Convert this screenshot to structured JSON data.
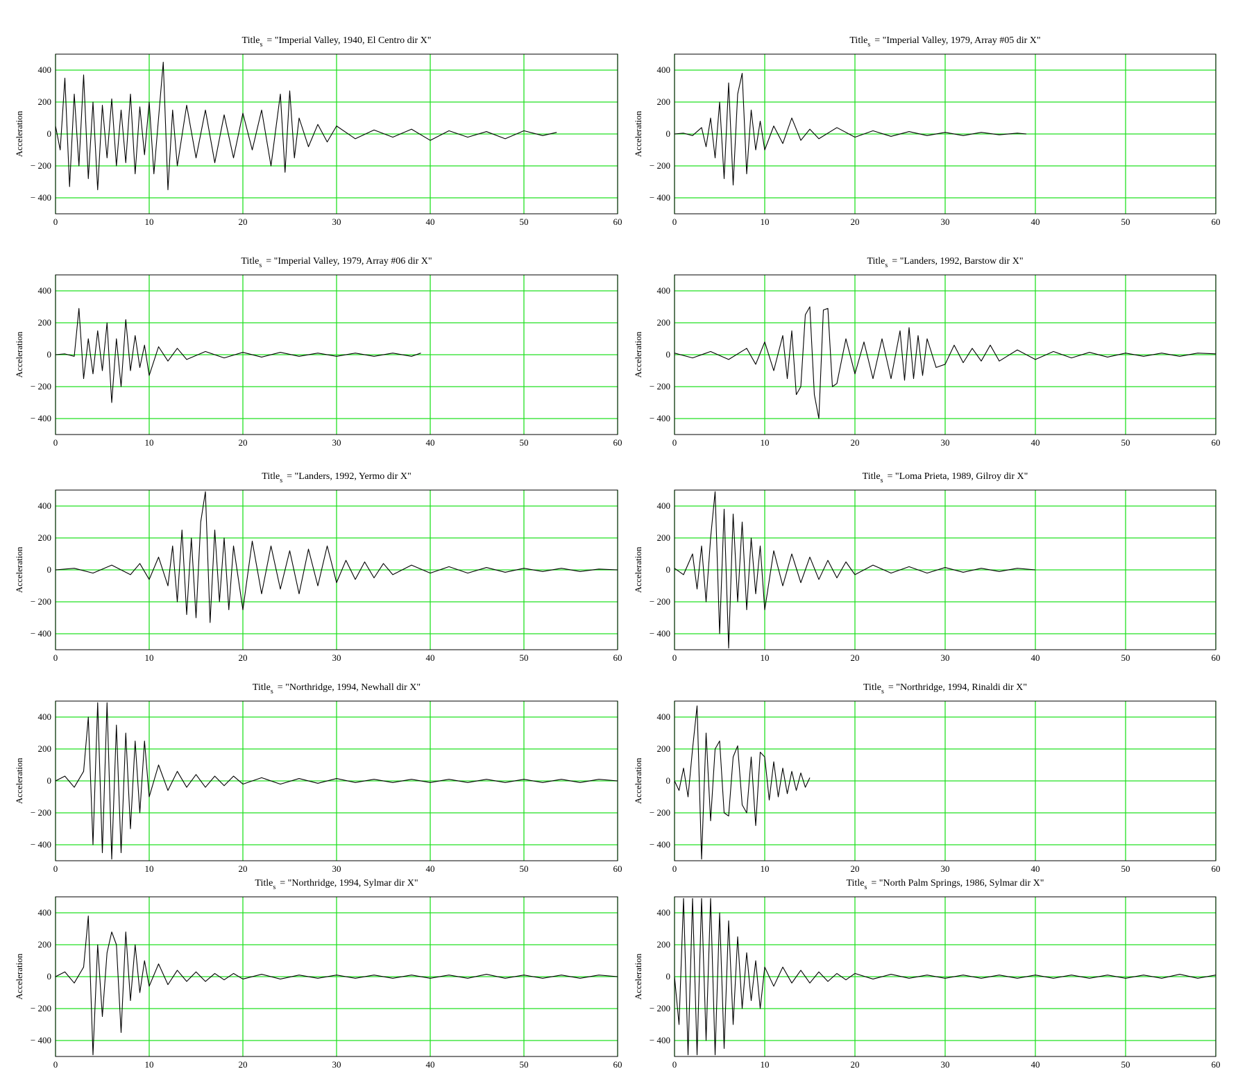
{
  "chart_data": [
    {
      "type": "line",
      "title_prefix": "Title",
      "title_subscript": "s",
      "title": "= \"Imperial Valley, 1940, El Centro dir X\"",
      "ylabel": "Acceleration",
      "color": "#000000",
      "grid_color": "#22e022",
      "grid": true,
      "xlim": [
        0,
        60
      ],
      "ylim": [
        -500,
        500
      ],
      "xticks": [
        0,
        10,
        20,
        30,
        40,
        50,
        60
      ],
      "yticks": [
        {
          "value": -400,
          "label": "− 400"
        },
        {
          "value": -200,
          "label": "− 200"
        },
        0,
        200,
        400
      ],
      "x": [
        0,
        0.5,
        1,
        1.5,
        2,
        2.5,
        3,
        3.5,
        4,
        4.5,
        5,
        5.5,
        6,
        6.5,
        7,
        7.5,
        8,
        8.5,
        9,
        9.5,
        10,
        10.5,
        11,
        11.5,
        12,
        12.5,
        13,
        14,
        15,
        16,
        17,
        18,
        19,
        20,
        21,
        22,
        23,
        24,
        24.5,
        25,
        25.5,
        26,
        27,
        28,
        29,
        30,
        32,
        34,
        36,
        38,
        40,
        42,
        44,
        46,
        48,
        50,
        52,
        53.5
      ],
      "values": [
        50,
        -100,
        350,
        -330,
        250,
        -200,
        370,
        -280,
        200,
        -350,
        180,
        -150,
        220,
        -200,
        150,
        -180,
        250,
        -250,
        170,
        -130,
        200,
        -250,
        100,
        450,
        -350,
        150,
        -200,
        180,
        -150,
        150,
        -180,
        120,
        -150,
        130,
        -100,
        150,
        -200,
        250,
        -240,
        270,
        -150,
        100,
        -80,
        60,
        -50,
        50,
        -30,
        25,
        -20,
        30,
        -40,
        20,
        -20,
        15,
        -30,
        20,
        -10,
        10
      ]
    },
    {
      "type": "line",
      "title_prefix": "Title",
      "title_subscript": "s",
      "title": "= \"Imperial Valley, 1979, Array #05 dir X\"",
      "ylabel": "Acceleration",
      "color": "#000000",
      "grid_color": "#22e022",
      "grid": true,
      "xlim": [
        0,
        60
      ],
      "ylim": [
        -500,
        500
      ],
      "xticks": [
        0,
        10,
        20,
        30,
        40,
        50,
        60
      ],
      "yticks": [
        {
          "value": -400,
          "label": "− 400"
        },
        {
          "value": -200,
          "label": "− 200"
        },
        0,
        200,
        400
      ],
      "x": [
        0,
        1,
        2,
        3,
        3.5,
        4,
        4.5,
        5,
        5.5,
        6,
        6.5,
        7,
        7.5,
        8,
        8.5,
        9,
        9.5,
        10,
        11,
        12,
        13,
        14,
        15,
        16,
        18,
        20,
        22,
        24,
        26,
        28,
        30,
        32,
        34,
        36,
        38,
        39
      ],
      "values": [
        0,
        5,
        -10,
        40,
        -80,
        100,
        -150,
        200,
        -280,
        320,
        -320,
        250,
        380,
        -250,
        150,
        -100,
        80,
        -100,
        50,
        -60,
        100,
        -40,
        30,
        -30,
        40,
        -20,
        20,
        -15,
        15,
        -10,
        10,
        -10,
        10,
        -5,
        5,
        0
      ]
    },
    {
      "type": "line",
      "title_prefix": "Title",
      "title_subscript": "s",
      "title": "= \"Imperial Valley, 1979, Array #06 dir X\"",
      "ylabel": "Acceleration",
      "color": "#000000",
      "grid_color": "#22e022",
      "grid": true,
      "xlim": [
        0,
        60
      ],
      "ylim": [
        -500,
        500
      ],
      "xticks": [
        0,
        10,
        20,
        30,
        40,
        50,
        60
      ],
      "yticks": [
        {
          "value": -400,
          "label": "− 400"
        },
        {
          "value": -200,
          "label": "− 200"
        },
        0,
        200,
        400
      ],
      "x": [
        0,
        1,
        2,
        2.5,
        3,
        3.5,
        4,
        4.5,
        5,
        5.5,
        6,
        6.5,
        7,
        7.5,
        8,
        8.5,
        9,
        9.5,
        10,
        11,
        12,
        13,
        14,
        16,
        18,
        20,
        22,
        24,
        26,
        28,
        30,
        32,
        34,
        36,
        38,
        39
      ],
      "values": [
        0,
        5,
        -10,
        290,
        -150,
        100,
        -120,
        150,
        -100,
        200,
        -300,
        100,
        -200,
        220,
        -100,
        120,
        -80,
        60,
        -130,
        50,
        -40,
        40,
        -30,
        20,
        -20,
        15,
        -15,
        15,
        -10,
        10,
        -10,
        10,
        -10,
        10,
        -10,
        10
      ]
    },
    {
      "type": "line",
      "title_prefix": "Title",
      "title_subscript": "s",
      "title": "= \"Landers, 1992, Barstow dir X\"",
      "ylabel": "Acceleration",
      "color": "#000000",
      "grid_color": "#22e022",
      "grid": true,
      "xlim": [
        0,
        60
      ],
      "ylim": [
        -500,
        500
      ],
      "xticks": [
        0,
        10,
        20,
        30,
        40,
        50,
        60
      ],
      "yticks": [
        {
          "value": -400,
          "label": "− 400"
        },
        {
          "value": -200,
          "label": "− 200"
        },
        0,
        200,
        400
      ],
      "x": [
        0,
        2,
        4,
        6,
        8,
        9,
        10,
        11,
        12,
        12.5,
        13,
        13.5,
        14,
        14.5,
        15,
        15.5,
        16,
        16.5,
        17,
        17.5,
        18,
        19,
        20,
        21,
        22,
        23,
        24,
        25,
        25.5,
        26,
        26.5,
        27,
        27.5,
        28,
        29,
        30,
        31,
        32,
        33,
        34,
        35,
        36,
        38,
        40,
        42,
        44,
        46,
        48,
        50,
        52,
        54,
        56,
        58,
        60
      ],
      "values": [
        10,
        -20,
        20,
        -30,
        40,
        -60,
        80,
        -100,
        120,
        -150,
        150,
        -250,
        -200,
        250,
        300,
        -250,
        -400,
        280,
        290,
        -200,
        -180,
        100,
        -120,
        80,
        -150,
        100,
        -150,
        150,
        -160,
        170,
        -150,
        120,
        -130,
        100,
        -80,
        -60,
        60,
        -50,
        40,
        -40,
        60,
        -40,
        30,
        -30,
        20,
        -20,
        15,
        -15,
        10,
        -10,
        10,
        -10,
        10,
        5
      ]
    },
    {
      "type": "line",
      "title_prefix": "Title",
      "title_subscript": "s",
      "title": "= \"Landers, 1992, Yermo dir X\"",
      "ylabel": "Acceleration",
      "color": "#000000",
      "grid_color": "#22e022",
      "grid": true,
      "xlim": [
        0,
        60
      ],
      "ylim": [
        -500,
        500
      ],
      "xticks": [
        0,
        10,
        20,
        30,
        40,
        50,
        60
      ],
      "yticks": [
        {
          "value": -400,
          "label": "− 400"
        },
        {
          "value": -200,
          "label": "− 200"
        },
        0,
        200,
        400
      ],
      "x": [
        0,
        2,
        4,
        6,
        8,
        9,
        10,
        11,
        12,
        12.5,
        13,
        13.5,
        14,
        14.5,
        15,
        15.5,
        16,
        16.5,
        17,
        17.5,
        18,
        18.5,
        19,
        20,
        21,
        22,
        23,
        24,
        25,
        26,
        27,
        28,
        29,
        30,
        31,
        32,
        33,
        34,
        35,
        36,
        38,
        40,
        42,
        44,
        46,
        48,
        50,
        52,
        54,
        56,
        58,
        60
      ],
      "values": [
        0,
        10,
        -20,
        30,
        -30,
        40,
        -60,
        80,
        -100,
        150,
        -200,
        250,
        -280,
        200,
        -300,
        300,
        490,
        -330,
        250,
        -200,
        200,
        -250,
        150,
        -250,
        180,
        -150,
        150,
        -120,
        120,
        -150,
        130,
        -100,
        150,
        -80,
        60,
        -60,
        50,
        -50,
        40,
        -30,
        30,
        -20,
        20,
        -20,
        15,
        -15,
        10,
        -10,
        10,
        -10,
        5,
        0
      ]
    },
    {
      "type": "line",
      "title_prefix": "Title",
      "title_subscript": "s",
      "title": "= \"Loma Prieta, 1989, Gilroy dir X\"",
      "ylabel": "Acceleration",
      "color": "#000000",
      "grid_color": "#22e022",
      "grid": true,
      "xlim": [
        0,
        60
      ],
      "ylim": [
        -500,
        500
      ],
      "xticks": [
        0,
        10,
        20,
        30,
        40,
        50,
        60
      ],
      "yticks": [
        {
          "value": -400,
          "label": "− 400"
        },
        {
          "value": -200,
          "label": "− 200"
        },
        0,
        200,
        400
      ],
      "x": [
        0,
        1,
        2,
        2.5,
        3,
        3.5,
        4,
        4.5,
        5,
        5.5,
        6,
        6.5,
        7,
        7.5,
        8,
        8.5,
        9,
        9.5,
        10,
        11,
        12,
        13,
        14,
        15,
        16,
        17,
        18,
        19,
        20,
        22,
        24,
        26,
        28,
        30,
        32,
        34,
        36,
        38,
        40
      ],
      "values": [
        10,
        -30,
        100,
        -120,
        150,
        -200,
        200,
        490,
        -400,
        380,
        -490,
        350,
        -200,
        300,
        -250,
        200,
        -150,
        150,
        -250,
        120,
        -100,
        100,
        -80,
        80,
        -60,
        60,
        -50,
        50,
        -30,
        30,
        -20,
        20,
        -20,
        15,
        -15,
        10,
        -10,
        10,
        0
      ]
    },
    {
      "type": "line",
      "title_prefix": "Title",
      "title_subscript": "s",
      "title": "= \"Northridge, 1994, Newhall dir X\"",
      "ylabel": "Acceleration",
      "color": "#000000",
      "grid_color": "#22e022",
      "grid": true,
      "xlim": [
        0,
        60
      ],
      "ylim": [
        -500,
        500
      ],
      "xticks": [
        0,
        10,
        20,
        30,
        40,
        50,
        60
      ],
      "yticks": [
        {
          "value": -400,
          "label": "− 400"
        },
        {
          "value": -200,
          "label": "− 200"
        },
        0,
        200,
        400
      ],
      "x": [
        0,
        1,
        2,
        3,
        3.5,
        4,
        4.5,
        5,
        5.5,
        6,
        6.5,
        7,
        7.5,
        8,
        8.5,
        9,
        9.5,
        10,
        11,
        12,
        13,
        14,
        15,
        16,
        17,
        18,
        19,
        20,
        22,
        24,
        26,
        28,
        30,
        32,
        34,
        36,
        38,
        40,
        42,
        44,
        46,
        48,
        50,
        52,
        54,
        56,
        58,
        60
      ],
      "values": [
        0,
        30,
        -40,
        60,
        400,
        -400,
        490,
        -450,
        490,
        -490,
        350,
        -450,
        300,
        -300,
        250,
        -200,
        250,
        -100,
        100,
        -60,
        60,
        -40,
        40,
        -40,
        30,
        -30,
        30,
        -20,
        20,
        -20,
        15,
        -15,
        15,
        -10,
        10,
        -10,
        10,
        -10,
        10,
        -10,
        10,
        -10,
        10,
        -10,
        10,
        -10,
        10,
        0
      ]
    },
    {
      "type": "line",
      "title_prefix": "Title",
      "title_subscript": "s",
      "title": "= \"Northridge, 1994, Rinaldi dir X\"",
      "ylabel": "Acceleration",
      "color": "#000000",
      "grid_color": "#22e022",
      "grid": true,
      "xlim": [
        0,
        60
      ],
      "ylim": [
        -500,
        500
      ],
      "xticks": [
        0,
        10,
        20,
        30,
        40,
        50,
        60
      ],
      "yticks": [
        {
          "value": -400,
          "label": "− 400"
        },
        {
          "value": -200,
          "label": "− 200"
        },
        0,
        200,
        400
      ],
      "x": [
        0,
        0.5,
        1,
        1.5,
        2,
        2.5,
        3,
        3.5,
        4,
        4.5,
        5,
        5.5,
        6,
        6.5,
        7,
        7.5,
        8,
        8.5,
        9,
        9.5,
        10,
        10.5,
        11,
        11.5,
        12,
        12.5,
        13,
        13.5,
        14,
        14.5,
        15
      ],
      "values": [
        0,
        -60,
        80,
        -100,
        200,
        470,
        -490,
        300,
        -250,
        200,
        250,
        -200,
        -220,
        150,
        220,
        -150,
        -200,
        150,
        -280,
        180,
        150,
        -120,
        120,
        -100,
        80,
        -80,
        60,
        -60,
        50,
        -40,
        20
      ]
    },
    {
      "type": "line",
      "title_prefix": "Title",
      "title_subscript": "s",
      "title": "= \"Northridge, 1994, Sylmar dir X\"",
      "ylabel": "Acceleration",
      "color": "#000000",
      "grid_color": "#22e022",
      "grid": true,
      "xlim": [
        0,
        60
      ],
      "ylim": [
        -500,
        500
      ],
      "xticks": [
        0,
        10,
        20,
        30,
        40,
        50,
        60
      ],
      "yticks": [
        {
          "value": -400,
          "label": "− 400"
        },
        {
          "value": -200,
          "label": "− 200"
        },
        0,
        200,
        400
      ],
      "x": [
        0,
        1,
        2,
        3,
        3.5,
        4,
        4.5,
        5,
        5.5,
        6,
        6.5,
        7,
        7.5,
        8,
        8.5,
        9,
        9.5,
        10,
        11,
        12,
        13,
        14,
        15,
        16,
        17,
        18,
        19,
        20,
        22,
        24,
        26,
        28,
        30,
        32,
        34,
        36,
        38,
        40,
        42,
        44,
        46,
        48,
        50,
        52,
        54,
        56,
        58,
        60
      ],
      "values": [
        0,
        30,
        -40,
        60,
        380,
        -490,
        200,
        -250,
        150,
        280,
        200,
        -350,
        280,
        -150,
        200,
        -100,
        100,
        -60,
        80,
        -50,
        40,
        -30,
        30,
        -30,
        20,
        -20,
        20,
        -15,
        15,
        -15,
        10,
        -10,
        10,
        -10,
        10,
        -10,
        10,
        -10,
        10,
        -10,
        15,
        -10,
        10,
        -10,
        10,
        -10,
        10,
        0
      ]
    },
    {
      "type": "line",
      "title_prefix": "Title",
      "title_subscript": "s",
      "title": "= \"North Palm Springs, 1986, Sylmar dir X\"",
      "ylabel": "Acceleration",
      "color": "#000000",
      "grid_color": "#22e022",
      "grid": true,
      "xlim": [
        0,
        60
      ],
      "ylim": [
        -500,
        500
      ],
      "xticks": [
        0,
        10,
        20,
        30,
        40,
        50,
        60
      ],
      "yticks": [
        {
          "value": -400,
          "label": "− 400"
        },
        {
          "value": -200,
          "label": "− 200"
        },
        0,
        200,
        400
      ],
      "x": [
        0,
        0.5,
        1,
        1.5,
        2,
        2.5,
        3,
        3.5,
        4,
        4.5,
        5,
        5.5,
        6,
        6.5,
        7,
        7.5,
        8,
        8.5,
        9,
        9.5,
        10,
        11,
        12,
        13,
        14,
        15,
        16,
        17,
        18,
        19,
        20,
        22,
        24,
        26,
        28,
        30,
        32,
        34,
        36,
        38,
        40,
        42,
        44,
        46,
        48,
        50,
        52,
        54,
        56,
        58,
        60
      ],
      "values": [
        0,
        -300,
        490,
        -490,
        490,
        -490,
        490,
        -400,
        490,
        -490,
        400,
        -450,
        350,
        -300,
        250,
        -200,
        150,
        -150,
        100,
        -200,
        60,
        -60,
        60,
        -40,
        40,
        -40,
        30,
        -30,
        20,
        -20,
        20,
        -15,
        15,
        -10,
        10,
        -10,
        10,
        -10,
        10,
        -10,
        10,
        -10,
        10,
        -10,
        10,
        -10,
        10,
        -10,
        15,
        -10,
        10
      ]
    }
  ]
}
